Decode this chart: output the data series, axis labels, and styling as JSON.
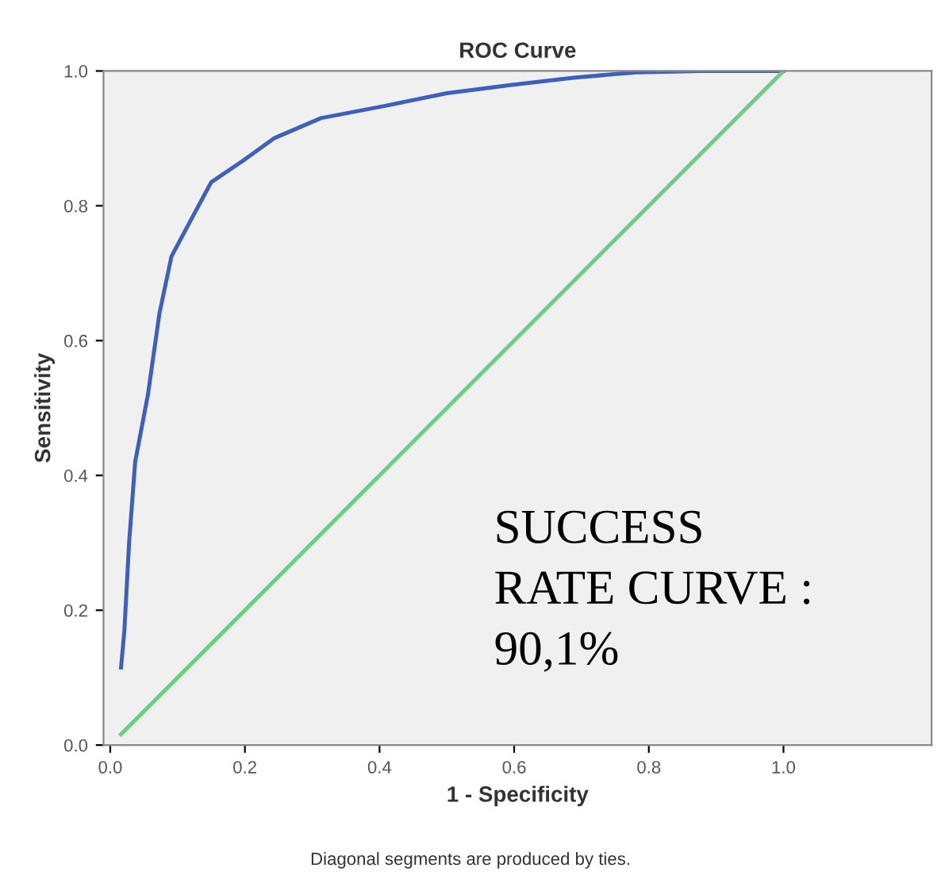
{
  "chart_data": {
    "type": "line",
    "title": "ROC Curve",
    "xlabel": "1 - Specificity",
    "ylabel": "Sensitivity",
    "xlim": [
      -0.01,
      1.22
    ],
    "ylim": [
      0,
      1
    ],
    "xticks": [
      {
        "value": 0,
        "label": "0.0"
      },
      0.2,
      0.4,
      0.6,
      0.8,
      {
        "value": 1,
        "label": "1.0"
      }
    ],
    "yticks": [
      {
        "value": 0,
        "label": "0.0"
      },
      0.2,
      0.4,
      0.6,
      0.8,
      {
        "value": 1,
        "label": "1.0"
      }
    ],
    "grid": false,
    "legend": false,
    "marker": "none",
    "line_style": "solid",
    "series": [
      {
        "color": "#3f5fbf",
        "x": [
          0.016,
          0.021,
          0.028,
          0.037,
          0.056,
          0.073,
          0.091,
          0.115,
          0.15,
          0.196,
          0.243,
          0.313,
          0.407,
          0.5,
          0.594,
          0.688,
          0.781,
          0.875,
          1.0
        ],
        "values": [
          0.115,
          0.17,
          0.3,
          0.42,
          0.52,
          0.64,
          0.725,
          0.77,
          0.835,
          0.866,
          0.9,
          0.93,
          0.948,
          0.967,
          0.979,
          0.99,
          0.998,
          1.0,
          1.0
        ]
      },
      {
        "color": "#6ccf7f",
        "x": [
          0.016,
          1.0
        ],
        "values": [
          0.016,
          1.0
        ]
      }
    ],
    "annotations": [
      "SUCCESS\nRATE CURVE :\n90,1%",
      "Diagonal segments are produced by ties."
    ]
  }
}
